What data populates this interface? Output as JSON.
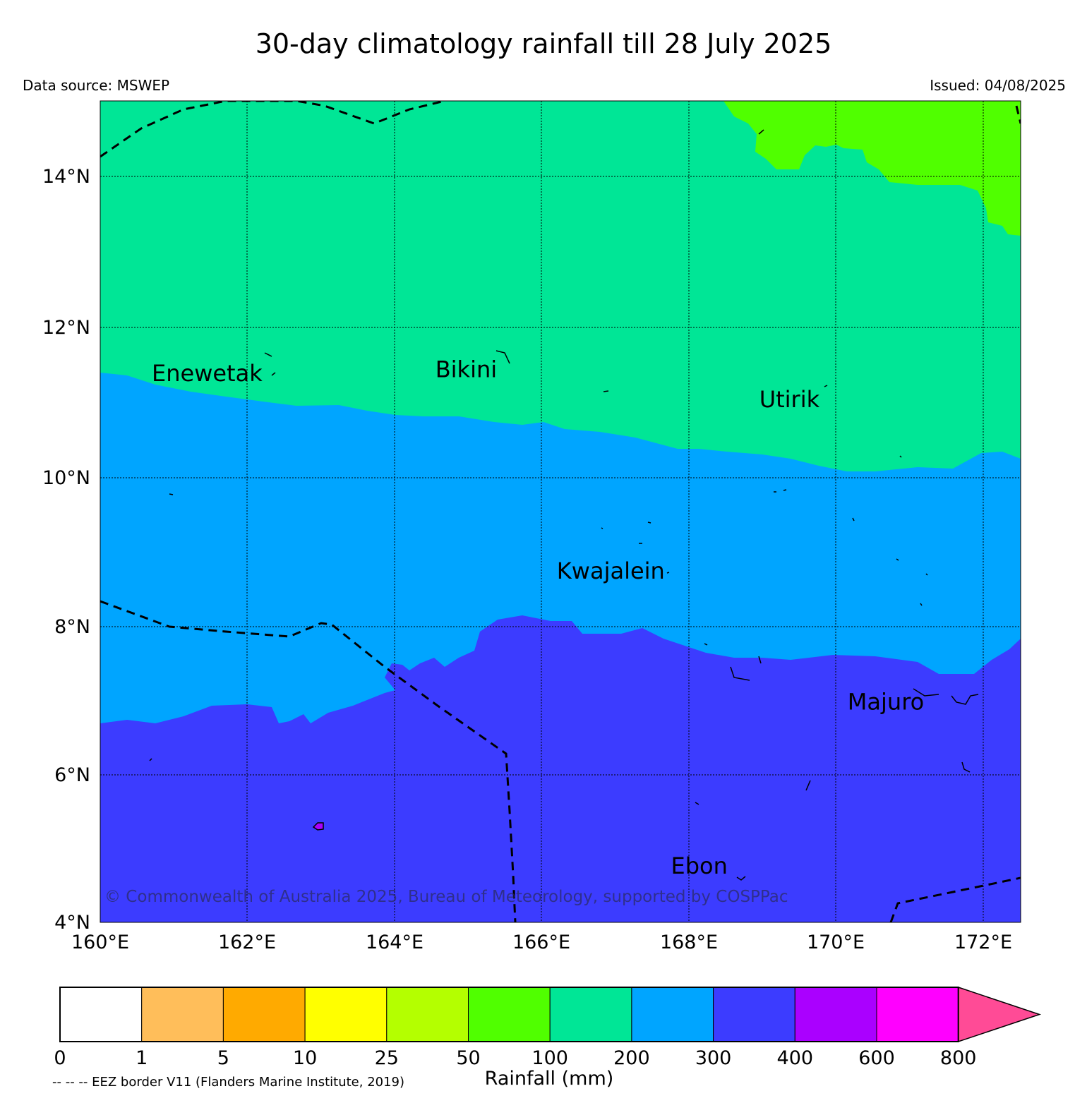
{
  "title": "30-day climatology rainfall till 28 July 2025",
  "data_source": "Data source: MSWEP",
  "issued": "Issued: 04/08/2025",
  "map": {
    "extent": {
      "lon_min": 160,
      "lon_max": 172.5,
      "lat_min": 4,
      "lat_max": 15
    },
    "lat_ticks": [
      {
        "value": 14,
        "label": "14°N"
      },
      {
        "value": 12,
        "label": "12°N"
      },
      {
        "value": 10,
        "label": "10°N"
      },
      {
        "value": 8,
        "label": "8°N"
      },
      {
        "value": 6,
        "label": "6°N"
      },
      {
        "value": 4,
        "label": "4°N"
      }
    ],
    "lon_ticks": [
      {
        "value": 160,
        "label": "160°E"
      },
      {
        "value": 162,
        "label": "162°E"
      },
      {
        "value": 164,
        "label": "164°E"
      },
      {
        "value": 166,
        "label": "166°E"
      },
      {
        "value": 168,
        "label": "168°E"
      },
      {
        "value": 170,
        "label": "170°E"
      },
      {
        "value": 172,
        "label": "172°E"
      }
    ],
    "places": [
      {
        "name": "Enewetak",
        "lon": 160.7,
        "lat": 11.25
      },
      {
        "name": "Bikini",
        "lon": 164.55,
        "lat": 11.3
      },
      {
        "name": "Utirik",
        "lon": 168.95,
        "lat": 10.9
      },
      {
        "name": "Kwajalein",
        "lon": 166.2,
        "lat": 8.6
      },
      {
        "name": "Majuro",
        "lon": 170.15,
        "lat": 6.85
      },
      {
        "name": "Ebon",
        "lon": 167.75,
        "lat": 4.65
      }
    ],
    "copyright": "© Commonwealth of Australia 2025, Bureau of Meteorology, supported by COSPPac"
  },
  "colorbar": {
    "title": "Rainfall (mm)",
    "labels": [
      "0",
      "1",
      "5",
      "10",
      "25",
      "50",
      "100",
      "200",
      "300",
      "400",
      "600",
      "800"
    ],
    "colors": [
      "#ffffff",
      "#ffbe5a",
      "#ffaa00",
      "#ffff00",
      "#b4ff00",
      "#50ff00",
      "#00e696",
      "#00a5ff",
      "#3c3cff",
      "#aa00ff",
      "#ff00ff"
    ],
    "extend_color": "#ff4b96"
  },
  "eez_note": "-- -- -- EEZ border V11 (Flanders Marine Institute, 2019)"
}
